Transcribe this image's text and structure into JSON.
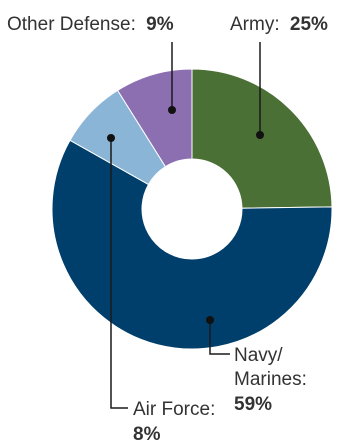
{
  "chart_data": {
    "type": "pie",
    "donut": true,
    "title": "",
    "slices": [
      {
        "name": "Army",
        "label": "Army:",
        "value": 25,
        "value_label": "25%",
        "color": "#4a7035"
      },
      {
        "name": "Navy/Marines",
        "label_lines": [
          "Navy/",
          "Marines:"
        ],
        "value": 59,
        "value_label": "59%",
        "color": "#003e6b"
      },
      {
        "name": "Air Force",
        "label": "Air Force:",
        "value": 8,
        "value_label": "8%",
        "color": "#8ab5d6"
      },
      {
        "name": "Other Defense",
        "label": "Other Defense:",
        "value": 9,
        "value_label": "9%",
        "color": "#8c6fb0"
      }
    ],
    "start_position": "top",
    "direction": "clockwise",
    "legend": "none"
  }
}
